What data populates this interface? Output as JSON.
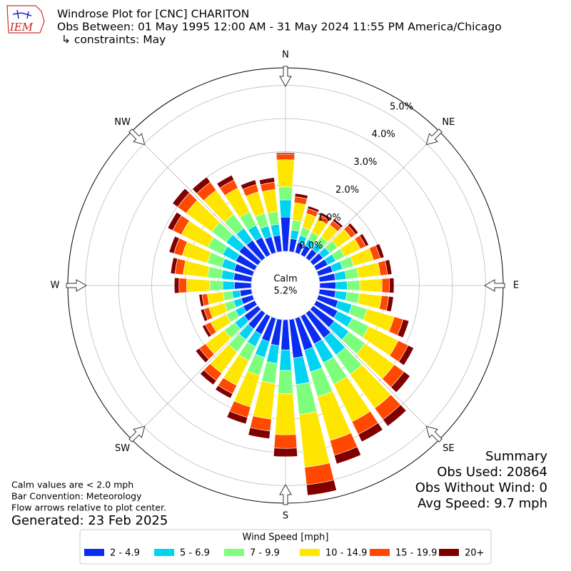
{
  "chart_data": {
    "type": "windrose",
    "logo": "IEM",
    "title": "Windrose Plot for [CNC] CHARITON",
    "subtitle": "Obs Between: 01 May 1995 12:00 AM - 31 May 2024 11:55 PM America/Chicago",
    "constraints": "↳ constraints: May",
    "x": [
      0,
      10,
      20,
      30,
      40,
      50,
      60,
      70,
      80,
      90,
      100,
      110,
      120,
      130,
      140,
      150,
      160,
      170,
      180,
      190,
      200,
      210,
      220,
      230,
      240,
      250,
      260,
      270,
      280,
      290,
      300,
      310,
      320,
      330,
      340,
      350
    ],
    "compass_labels": [
      "N",
      "NE",
      "E",
      "SE",
      "S",
      "SW",
      "W",
      "NW"
    ],
    "calm_label": "Calm",
    "calm_value": "5.2%",
    "rlim": [
      0,
      5.53
    ],
    "rticks": [
      {
        "value": 0,
        "label": "0.0%"
      },
      {
        "value": 1,
        "label": "1.0%"
      },
      {
        "value": 2,
        "label": "2.0%"
      },
      {
        "value": 3,
        "label": "3.0%"
      },
      {
        "value": 4,
        "label": "4.0%"
      },
      {
        "value": 5,
        "label": "5.0%"
      }
    ],
    "grid": true,
    "legend_title": "Wind Speed [mph]",
    "series": [
      {
        "name": "2 - 4.9",
        "color": "#0a2cf0",
        "values": [
          1.03,
          0.39,
          0.32,
          0.31,
          0.32,
          0.37,
          0.39,
          0.45,
          0.48,
          0.49,
          0.49,
          0.62,
          0.72,
          0.79,
          0.93,
          0.93,
          1.0,
          1.17,
          0.91,
          0.79,
          0.73,
          0.61,
          0.59,
          0.51,
          0.39,
          0.36,
          0.35,
          0.51,
          0.54,
          0.58,
          0.64,
          0.7,
          0.66,
          0.59,
          0.5,
          0.49
        ]
      },
      {
        "name": "5 - 6.9",
        "color": "#00d4f0",
        "values": [
          0.52,
          0.26,
          0.22,
          0.21,
          0.22,
          0.25,
          0.26,
          0.31,
          0.33,
          0.34,
          0.34,
          0.43,
          0.49,
          0.54,
          0.63,
          0.63,
          0.68,
          0.8,
          0.62,
          0.54,
          0.5,
          0.41,
          0.4,
          0.35,
          0.26,
          0.24,
          0.24,
          0.35,
          0.37,
          0.39,
          0.44,
          0.48,
          0.45,
          0.4,
          0.34,
          0.34
        ]
      },
      {
        "name": "7 - 9.9",
        "color": "#7dff7d",
        "values": [
          0.39,
          0.3,
          0.25,
          0.24,
          0.25,
          0.29,
          0.3,
          0.35,
          0.37,
          0.38,
          0.38,
          0.48,
          0.56,
          0.61,
          0.72,
          0.72,
          0.78,
          0.91,
          0.7,
          0.61,
          0.56,
          0.47,
          0.45,
          0.39,
          0.3,
          0.28,
          0.27,
          0.39,
          0.42,
          0.45,
          0.5,
          0.54,
          0.51,
          0.45,
          0.39,
          0.38
        ]
      },
      {
        "name": "10 - 14.9",
        "color": "#ffe600",
        "values": [
          0.82,
          0.53,
          0.44,
          0.43,
          0.44,
          0.5,
          0.53,
          0.62,
          0.66,
          0.67,
          0.67,
          0.85,
          0.98,
          1.08,
          1.26,
          1.26,
          1.37,
          1.6,
          1.24,
          1.08,
          0.99,
          0.83,
          0.8,
          0.7,
          0.53,
          0.49,
          0.48,
          0.7,
          0.74,
          0.79,
          0.88,
          0.95,
          0.9,
          0.8,
          0.68,
          0.67
        ]
      },
      {
        "name": "15 - 19.9",
        "color": "#ff4800",
        "values": [
          0.17,
          0.18,
          0.15,
          0.14,
          0.15,
          0.17,
          0.18,
          0.21,
          0.22,
          0.22,
          0.22,
          0.28,
          0.33,
          0.36,
          0.42,
          0.42,
          0.46,
          0.53,
          0.41,
          0.36,
          0.33,
          0.28,
          0.27,
          0.23,
          0.18,
          0.16,
          0.16,
          0.23,
          0.25,
          0.26,
          0.29,
          0.32,
          0.3,
          0.27,
          0.23,
          0.22
        ]
      },
      {
        "name": "20+",
        "color": "#800000",
        "values": [
          0.04,
          0.1,
          0.08,
          0.09,
          0.08,
          0.1,
          0.1,
          0.12,
          0.13,
          0.14,
          0.14,
          0.18,
          0.19,
          0.23,
          0.25,
          0.25,
          0.27,
          0.32,
          0.25,
          0.23,
          0.2,
          0.15,
          0.16,
          0.14,
          0.1,
          0.1,
          0.09,
          0.14,
          0.13,
          0.15,
          0.17,
          0.19,
          0.19,
          0.16,
          0.14,
          0.14
        ]
      }
    ],
    "summary": [
      "Summary",
      "Obs Used: 20864",
      "Obs Without Wind: 0",
      "Avg Speed: 9.7 mph"
    ],
    "notes": [
      "Calm values are < 2.0 mph",
      "Bar Convention: Meteorology",
      "Flow arrows relative to plot center."
    ],
    "generated": "Generated: 23 Feb 2025"
  }
}
